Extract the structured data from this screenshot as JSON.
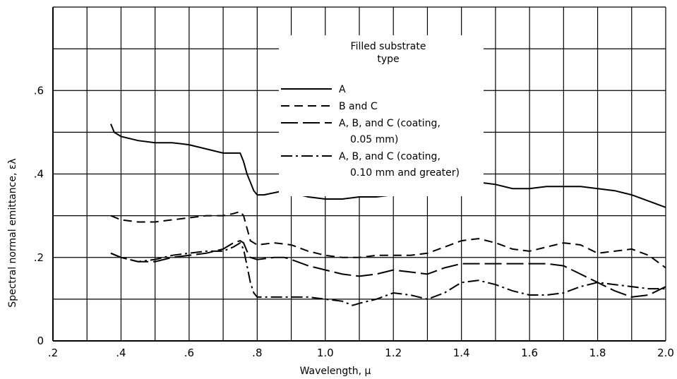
{
  "chart_data": {
    "type": "line",
    "xlabel": "Wavelength, μ",
    "ylabel": "Spectral normal emittance, ελ",
    "xlim": [
      0.2,
      2.0
    ],
    "ylim": [
      0,
      0.8
    ],
    "grid": true,
    "x_ticks": [
      ".2",
      ".4",
      ".6",
      ".8",
      "1.0",
      "1.2",
      "1.4",
      "1.6",
      "1.8",
      "2.0"
    ],
    "x_tick_values": [
      0.2,
      0.4,
      0.6,
      0.8,
      1.0,
      1.2,
      1.4,
      1.6,
      1.8,
      2.0
    ],
    "y_ticks": [
      "0",
      ".2",
      ".4",
      ".6"
    ],
    "y_tick_values": [
      0,
      0.2,
      0.4,
      0.6
    ],
    "legend": {
      "title_line1": "Filled substrate",
      "title_line2": "type",
      "placement": "top-right",
      "entries": [
        {
          "line1": "A",
          "line2": "",
          "dash": "solid"
        },
        {
          "line1": "B and C",
          "line2": "",
          "dash": "dashed"
        },
        {
          "line1": "A, B, and C (coating,",
          "line2": "0.05 mm)",
          "dash": "long-dash"
        },
        {
          "line1": "A, B, and C (coating,",
          "line2": "0.10 mm and greater)",
          "dash": "dash-dot"
        }
      ]
    },
    "series": [
      {
        "name": "A",
        "dash": "solid",
        "x": [
          0.37,
          0.38,
          0.4,
          0.45,
          0.5,
          0.55,
          0.6,
          0.65,
          0.7,
          0.73,
          0.75,
          0.76,
          0.77,
          0.78,
          0.79,
          0.8,
          0.82,
          0.85,
          0.88,
          0.9,
          0.95,
          1.0,
          1.05,
          1.1,
          1.15,
          1.2,
          1.25,
          1.3,
          1.35,
          1.4,
          1.45,
          1.5,
          1.55,
          1.6,
          1.65,
          1.7,
          1.75,
          1.8,
          1.85,
          1.9,
          1.95,
          2.0
        ],
        "y": [
          0.52,
          0.5,
          0.49,
          0.48,
          0.475,
          0.475,
          0.47,
          0.46,
          0.45,
          0.45,
          0.45,
          0.43,
          0.4,
          0.38,
          0.36,
          0.35,
          0.35,
          0.355,
          0.36,
          0.355,
          0.345,
          0.34,
          0.34,
          0.345,
          0.345,
          0.35,
          0.35,
          0.36,
          0.37,
          0.375,
          0.38,
          0.375,
          0.365,
          0.365,
          0.37,
          0.37,
          0.37,
          0.365,
          0.36,
          0.35,
          0.335,
          0.32
        ]
      },
      {
        "name": "B and C",
        "dash": "dashed",
        "x": [
          0.37,
          0.4,
          0.45,
          0.5,
          0.55,
          0.6,
          0.65,
          0.7,
          0.73,
          0.75,
          0.76,
          0.77,
          0.78,
          0.8,
          0.85,
          0.9,
          0.95,
          1.0,
          1.05,
          1.1,
          1.15,
          1.2,
          1.25,
          1.3,
          1.35,
          1.4,
          1.45,
          1.5,
          1.55,
          1.6,
          1.65,
          1.7,
          1.75,
          1.8,
          1.85,
          1.9,
          1.95,
          2.0
        ],
        "y": [
          0.3,
          0.29,
          0.285,
          0.285,
          0.29,
          0.295,
          0.3,
          0.3,
          0.305,
          0.31,
          0.3,
          0.27,
          0.24,
          0.23,
          0.235,
          0.23,
          0.215,
          0.205,
          0.2,
          0.2,
          0.205,
          0.205,
          0.205,
          0.21,
          0.225,
          0.24,
          0.245,
          0.235,
          0.22,
          0.215,
          0.225,
          0.235,
          0.23,
          0.21,
          0.215,
          0.22,
          0.205,
          0.175
        ]
      },
      {
        "name": "A, B, and C (coating, 0.05 mm)",
        "dash": "long-dash",
        "x": [
          0.37,
          0.4,
          0.45,
          0.5,
          0.55,
          0.6,
          0.65,
          0.7,
          0.73,
          0.75,
          0.76,
          0.77,
          0.78,
          0.8,
          0.85,
          0.88,
          0.9,
          0.95,
          1.0,
          1.05,
          1.1,
          1.15,
          1.2,
          1.25,
          1.3,
          1.35,
          1.4,
          1.45,
          1.5,
          1.55,
          1.6,
          1.65,
          1.7,
          1.75,
          1.8,
          1.85,
          1.9,
          1.95,
          2.0
        ],
        "y": [
          0.21,
          0.2,
          0.19,
          0.19,
          0.2,
          0.205,
          0.21,
          0.22,
          0.235,
          0.24,
          0.235,
          0.215,
          0.2,
          0.195,
          0.2,
          0.2,
          0.195,
          0.18,
          0.17,
          0.16,
          0.155,
          0.16,
          0.17,
          0.165,
          0.16,
          0.175,
          0.185,
          0.185,
          0.185,
          0.185,
          0.185,
          0.185,
          0.18,
          0.16,
          0.14,
          0.12,
          0.105,
          0.11,
          0.13
        ]
      },
      {
        "name": "A, B, and C (coating, 0.10 mm and greater)",
        "dash": "dash-dot",
        "x": [
          0.37,
          0.4,
          0.45,
          0.5,
          0.55,
          0.6,
          0.65,
          0.7,
          0.73,
          0.75,
          0.76,
          0.77,
          0.78,
          0.79,
          0.8,
          0.82,
          0.85,
          0.9,
          0.95,
          1.0,
          1.05,
          1.08,
          1.1,
          1.15,
          1.2,
          1.25,
          1.3,
          1.35,
          1.4,
          1.45,
          1.5,
          1.55,
          1.6,
          1.65,
          1.7,
          1.75,
          1.8,
          1.85,
          1.9,
          1.95,
          2.0
        ],
        "y": [
          0.21,
          0.2,
          0.19,
          0.195,
          0.205,
          0.21,
          0.215,
          0.215,
          0.225,
          0.235,
          0.22,
          0.18,
          0.14,
          0.115,
          0.105,
          0.105,
          0.105,
          0.105,
          0.105,
          0.1,
          0.095,
          0.085,
          0.09,
          0.1,
          0.115,
          0.11,
          0.1,
          0.115,
          0.14,
          0.145,
          0.135,
          0.12,
          0.11,
          0.11,
          0.115,
          0.13,
          0.14,
          0.135,
          0.13,
          0.125,
          0.125
        ]
      }
    ]
  }
}
